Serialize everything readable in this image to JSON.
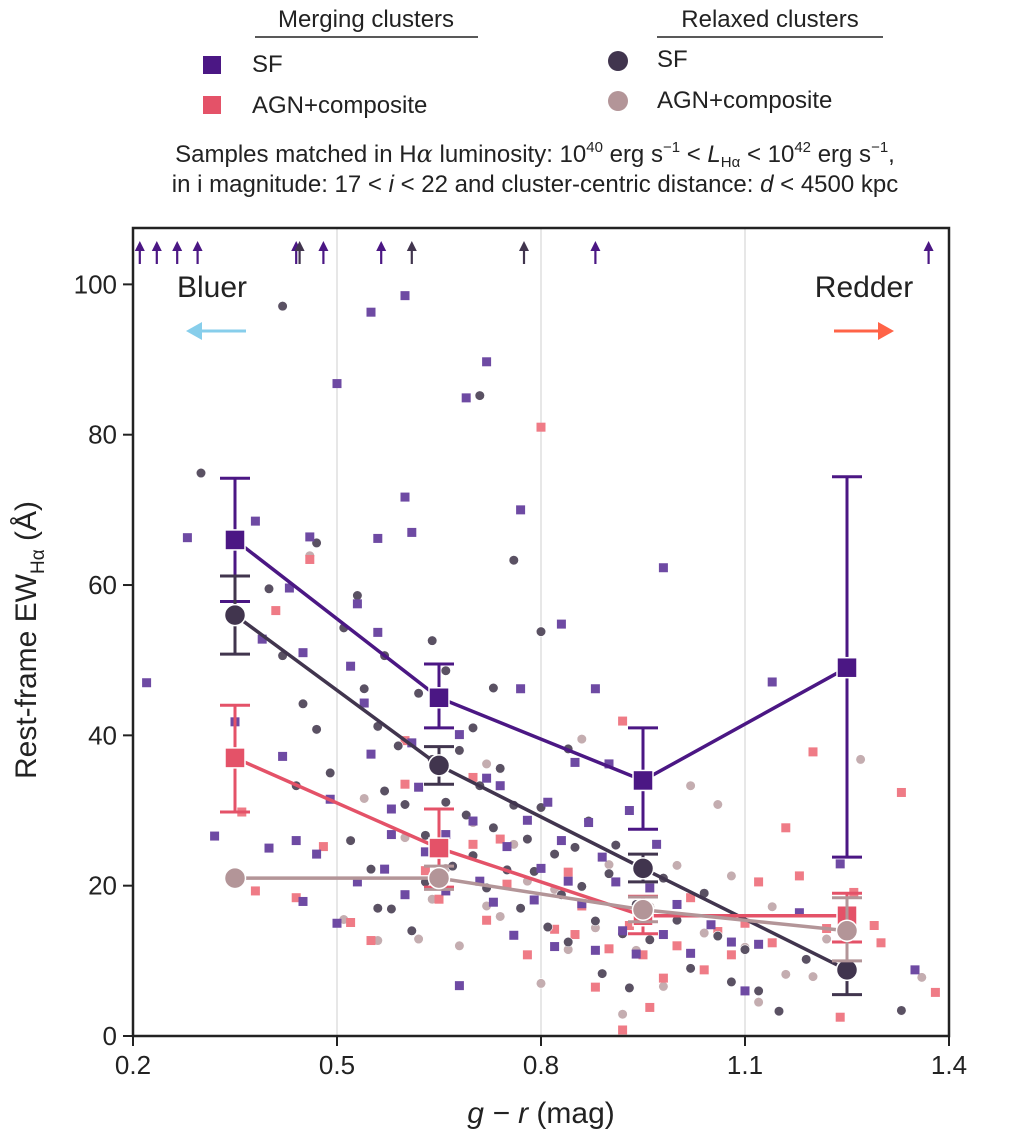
{
  "colors": {
    "merging_sf": "#4b1784",
    "merging_agn": "#e45268",
    "relaxed_sf": "#41354e",
    "relaxed_agn": "#b39598",
    "scatter_merging_sf": "#6e4aa3",
    "scatter_merging_agn": "#ef7b86",
    "scatter_relaxed_sf": "#5a5163",
    "scatter_relaxed_agn": "#c4adb0",
    "bluer": "#87ceeb",
    "redder": "#ff6347",
    "grid": "#cfcfcf",
    "axis": "#222222"
  },
  "legend": {
    "merging_title": "Merging clusters",
    "relaxed_title": "Relaxed clusters",
    "merging_sf": "SF",
    "merging_agn": "AGN+composite",
    "relaxed_sf": "SF",
    "relaxed_agn": "AGN+composite"
  },
  "subtitle": {
    "line1_a": "Samples matched in H",
    "line1_alpha": "α",
    "line1_b": " luminosity: 10",
    "line1_exp1": "40",
    "line1_c": " erg s",
    "line1_exp2": "−1",
    "line1_d": " < ",
    "line1_L": "L",
    "line1_Lsub": "Hα",
    "line1_e": " < 10",
    "line1_exp3": "42",
    "line1_f": " erg s",
    "line1_exp4": "−1",
    "line1_g": ",",
    "line2_a": "in i magnitude: 17 < ",
    "line2_i": "i",
    "line2_b": " < 22 and cluster-centric distance: ",
    "line2_d": "d",
    "line2_c": " < 4500 kpc"
  },
  "annotations": {
    "bluer": "Bluer",
    "redder": "Redder"
  },
  "chart_data": {
    "type": "scatter",
    "xlabel_italic": "g − r",
    "xlabel_unit": " (mag)",
    "ylabel_main": "Rest-frame EW",
    "ylabel_sub": "Hα",
    "ylabel_unit": " (Å)",
    "xlim": [
      0.2,
      1.4
    ],
    "ylim": [
      0,
      105
    ],
    "xticks": [
      0.2,
      0.5,
      0.8,
      1.1,
      1.4
    ],
    "xtick_labels": [
      "0.2",
      "0.5",
      "0.8",
      "1.1",
      "1.4"
    ],
    "yticks": [
      0,
      20,
      40,
      60,
      80,
      100
    ],
    "ytick_labels": [
      "0",
      "20",
      "40",
      "60",
      "80",
      "100"
    ],
    "x_gridlines": [
      0.5,
      0.8,
      1.1
    ],
    "binned_series": [
      {
        "name": "Merging SF",
        "marker": "square",
        "color_key": "merging_sf",
        "x": [
          0.35,
          0.65,
          0.95,
          1.25
        ],
        "y": [
          66,
          45,
          34,
          49
        ],
        "err_low": [
          57.8,
          41,
          27.5,
          23.8
        ],
        "err_high": [
          74.2,
          49.5,
          41,
          74.4
        ]
      },
      {
        "name": "Relaxed SF",
        "marker": "circle",
        "color_key": "relaxed_sf",
        "x": [
          0.35,
          0.65,
          0.95,
          1.25
        ],
        "y": [
          56,
          36,
          22.3,
          8.8
        ],
        "err_low": [
          50.8,
          33.5,
          20.5,
          5.5
        ],
        "err_high": [
          61.2,
          38.5,
          24.2,
          12.5
        ]
      },
      {
        "name": "Merging AGN+composite",
        "marker": "square",
        "color_key": "merging_agn",
        "x": [
          0.35,
          0.65,
          0.95,
          1.25
        ],
        "y": [
          37,
          25,
          16,
          16
        ],
        "err_low": [
          29.8,
          19.8,
          13.6,
          12.5
        ],
        "err_high": [
          44,
          30.2,
          18.6,
          19
        ]
      },
      {
        "name": "Relaxed AGN+composite",
        "marker": "circle",
        "color_key": "relaxed_agn",
        "x": [
          0.35,
          0.65,
          0.95,
          1.25
        ],
        "y": [
          21,
          21,
          16.8,
          14
        ],
        "err_low": [
          21,
          19.5,
          15.2,
          10
        ],
        "err_high": [
          21,
          22.6,
          18.5,
          18.4
        ]
      }
    ],
    "scatter": {
      "merging_sf": [
        [
          0.22,
          47
        ],
        [
          0.28,
          66.3
        ],
        [
          0.38,
          68.5
        ],
        [
          0.45,
          51
        ],
        [
          0.5,
          86.8
        ],
        [
          0.55,
          96.3
        ],
        [
          0.6,
          98.5
        ],
        [
          0.6,
          71.7
        ],
        [
          0.61,
          67
        ],
        [
          0.72,
          89.7
        ],
        [
          0.69,
          84.9
        ],
        [
          0.77,
          70
        ],
        [
          0.83,
          54.8
        ],
        [
          0.88,
          46.2
        ],
        [
          0.9,
          36.2
        ],
        [
          0.98,
          62.3
        ],
        [
          1.14,
          47.1
        ],
        [
          1.35,
          8.8
        ],
        [
          0.32,
          26.6
        ],
        [
          0.35,
          41.8
        ],
        [
          0.4,
          25
        ],
        [
          0.42,
          37.2
        ],
        [
          0.44,
          26
        ],
        [
          0.47,
          24.2
        ],
        [
          0.49,
          31.5
        ],
        [
          0.5,
          15
        ],
        [
          0.52,
          49.2
        ],
        [
          0.53,
          57.5
        ],
        [
          0.54,
          44.3
        ],
        [
          0.55,
          37.5
        ],
        [
          0.57,
          22.2
        ],
        [
          0.58,
          30.2
        ],
        [
          0.6,
          18.8
        ],
        [
          0.61,
          39
        ],
        [
          0.62,
          33.1
        ],
        [
          0.63,
          24.5
        ],
        [
          0.65,
          44.9
        ],
        [
          0.66,
          19.3
        ],
        [
          0.68,
          40.1
        ],
        [
          0.7,
          28.6
        ],
        [
          0.71,
          20.6
        ],
        [
          0.72,
          34.3
        ],
        [
          0.73,
          17.8
        ],
        [
          0.74,
          33.3
        ],
        [
          0.75,
          25.2
        ],
        [
          0.76,
          13.4
        ],
        [
          0.77,
          46.2
        ],
        [
          0.78,
          28.7
        ],
        [
          0.79,
          18.1
        ],
        [
          0.8,
          22.3
        ],
        [
          0.81,
          31.1
        ],
        [
          0.82,
          11.9
        ],
        [
          0.83,
          26
        ],
        [
          0.84,
          20.6
        ],
        [
          0.85,
          36.4
        ],
        [
          0.86,
          17.6
        ],
        [
          0.87,
          28.4
        ],
        [
          0.88,
          11.4
        ],
        [
          0.89,
          23.8
        ],
        [
          0.91,
          20.5
        ],
        [
          0.92,
          14
        ],
        [
          0.93,
          30
        ],
        [
          0.94,
          10.9
        ],
        [
          0.96,
          19.7
        ],
        [
          0.97,
          25.5
        ],
        [
          0.98,
          13.5
        ],
        [
          1.0,
          17.5
        ],
        [
          1.02,
          11
        ],
        [
          1.05,
          14.8
        ],
        [
          1.08,
          12.5
        ],
        [
          1.1,
          6
        ],
        [
          1.12,
          12.2
        ],
        [
          1.18,
          16.4
        ],
        [
          1.24,
          22.9
        ],
        [
          0.45,
          17.9
        ],
        [
          0.53,
          20.5
        ],
        [
          0.56,
          53.7
        ],
        [
          0.39,
          52.8
        ],
        [
          0.66,
          26.8
        ],
        [
          0.68,
          6.7
        ],
        [
          0.56,
          66.2
        ],
        [
          0.58,
          26.8
        ],
        [
          0.43,
          59.6
        ],
        [
          0.46,
          66.4
        ]
      ],
      "merging_agn": [
        [
          0.36,
          29.8
        ],
        [
          0.38,
          19.3
        ],
        [
          0.41,
          56.6
        ],
        [
          0.44,
          18.4
        ],
        [
          0.46,
          63.4
        ],
        [
          0.48,
          25.2
        ],
        [
          0.52,
          15.1
        ],
        [
          0.55,
          12.7
        ],
        [
          0.6,
          39.3
        ],
        [
          0.63,
          22
        ],
        [
          0.65,
          18.2
        ],
        [
          0.7,
          25.5
        ],
        [
          0.72,
          15.4
        ],
        [
          0.75,
          20.2
        ],
        [
          0.78,
          10.8
        ],
        [
          0.8,
          81
        ],
        [
          0.82,
          14.2
        ],
        [
          0.84,
          21.8
        ],
        [
          0.86,
          17.3
        ],
        [
          0.88,
          6.5
        ],
        [
          0.9,
          11.6
        ],
        [
          0.92,
          41.9
        ],
        [
          0.93,
          14.7
        ],
        [
          0.95,
          10.8
        ],
        [
          0.96,
          3.8
        ],
        [
          0.98,
          7.7
        ],
        [
          1.0,
          12
        ],
        [
          1.02,
          18.4
        ],
        [
          1.04,
          8.8
        ],
        [
          1.06,
          13.9
        ],
        [
          1.08,
          10.8
        ],
        [
          1.1,
          15
        ],
        [
          1.12,
          20.5
        ],
        [
          1.14,
          12.4
        ],
        [
          1.16,
          27.7
        ],
        [
          1.18,
          21.3
        ],
        [
          1.2,
          37.8
        ],
        [
          1.22,
          14.3
        ],
        [
          1.24,
          2.5
        ],
        [
          1.26,
          19.1
        ],
        [
          1.3,
          12.4
        ],
        [
          1.33,
          32.4
        ],
        [
          1.38,
          5.8
        ],
        [
          1.29,
          14.7
        ],
        [
          0.92,
          0.8
        ],
        [
          0.7,
          34.4
        ],
        [
          0.6,
          33.5
        ],
        [
          0.74,
          26.2
        ],
        [
          0.85,
          13.5
        ]
      ],
      "merging_agn_extra": [],
      "relaxed_sf": [
        [
          0.3,
          74.9
        ],
        [
          0.42,
          97.1
        ],
        [
          0.71,
          85.2
        ],
        [
          0.76,
          63.3
        ],
        [
          0.84,
          38.2
        ],
        [
          0.8,
          53.8
        ],
        [
          0.45,
          44.2
        ],
        [
          0.4,
          59.5
        ],
        [
          0.47,
          65.6
        ],
        [
          0.51,
          54.3
        ],
        [
          0.53,
          58.6
        ],
        [
          0.54,
          46.2
        ],
        [
          0.56,
          41.2
        ],
        [
          0.57,
          32.6
        ],
        [
          0.59,
          38.6
        ],
        [
          0.6,
          30.8
        ],
        [
          0.62,
          45.6
        ],
        [
          0.63,
          26.7
        ],
        [
          0.64,
          36.8
        ],
        [
          0.66,
          31.1
        ],
        [
          0.67,
          22.6
        ],
        [
          0.68,
          38
        ],
        [
          0.69,
          29.4
        ],
        [
          0.7,
          24
        ],
        [
          0.71,
          33.3
        ],
        [
          0.72,
          19.7
        ],
        [
          0.73,
          27.7
        ],
        [
          0.74,
          35.6
        ],
        [
          0.75,
          22.1
        ],
        [
          0.76,
          30.7
        ],
        [
          0.77,
          17
        ],
        [
          0.78,
          26.2
        ],
        [
          0.79,
          21.9
        ],
        [
          0.8,
          30.4
        ],
        [
          0.81,
          14.5
        ],
        [
          0.82,
          24.2
        ],
        [
          0.83,
          18.8
        ],
        [
          0.84,
          12.5
        ],
        [
          0.85,
          25.1
        ],
        [
          0.86,
          19.9
        ],
        [
          0.87,
          28.6
        ],
        [
          0.88,
          15.3
        ],
        [
          0.89,
          8.3
        ],
        [
          0.9,
          21.6
        ],
        [
          0.91,
          25.4
        ],
        [
          0.92,
          13.6
        ],
        [
          0.93,
          6.4
        ],
        [
          0.94,
          17.5
        ],
        [
          0.96,
          12.8
        ],
        [
          0.98,
          21
        ],
        [
          1.0,
          15.4
        ],
        [
          1.02,
          9
        ],
        [
          1.04,
          19
        ],
        [
          1.06,
          13.3
        ],
        [
          1.08,
          7.2
        ],
        [
          1.1,
          11.5
        ],
        [
          1.12,
          6
        ],
        [
          1.15,
          3.3
        ],
        [
          1.19,
          10.2
        ],
        [
          1.33,
          3.4
        ],
        [
          0.47,
          40.8
        ],
        [
          0.49,
          35
        ],
        [
          0.52,
          26
        ],
        [
          0.55,
          22.2
        ],
        [
          0.58,
          16.9
        ],
        [
          0.61,
          14
        ],
        [
          0.64,
          52.6
        ],
        [
          0.66,
          48.6
        ],
        [
          0.7,
          41
        ],
        [
          0.73,
          46.3
        ],
        [
          0.56,
          17
        ],
        [
          0.44,
          33.3
        ],
        [
          0.42,
          50.6
        ],
        [
          0.57,
          50.6
        ],
        [
          0.63,
          20.5
        ]
      ],
      "relaxed_agn": [
        [
          0.46,
          63.9
        ],
        [
          0.51,
          15.5
        ],
        [
          0.56,
          12.7
        ],
        [
          0.6,
          26.4
        ],
        [
          0.62,
          12.9
        ],
        [
          0.64,
          18.2
        ],
        [
          0.66,
          22.3
        ],
        [
          0.68,
          12
        ],
        [
          0.7,
          28.4
        ],
        [
          0.72,
          17.3
        ],
        [
          0.74,
          15.9
        ],
        [
          0.76,
          25.5
        ],
        [
          0.78,
          20.6
        ],
        [
          0.8,
          7
        ],
        [
          0.82,
          19.5
        ],
        [
          0.84,
          11.5
        ],
        [
          0.86,
          39.5
        ],
        [
          0.88,
          14.4
        ],
        [
          0.9,
          22.8
        ],
        [
          0.92,
          2.9
        ],
        [
          0.94,
          11.4
        ],
        [
          0.96,
          17.2
        ],
        [
          0.98,
          6.6
        ],
        [
          1.0,
          22.7
        ],
        [
          1.02,
          33.3
        ],
        [
          1.04,
          13.7
        ],
        [
          1.06,
          30.8
        ],
        [
          1.08,
          21.3
        ],
        [
          1.1,
          11.8
        ],
        [
          1.12,
          4.5
        ],
        [
          1.14,
          17.2
        ],
        [
          1.16,
          8.2
        ],
        [
          1.2,
          7.9
        ],
        [
          1.22,
          12.9
        ],
        [
          1.25,
          15.5
        ],
        [
          1.27,
          36.8
        ],
        [
          1.36,
          7.8
        ],
        [
          0.72,
          36.2
        ],
        [
          0.54,
          31.6
        ]
      ]
    },
    "upper_limit_arrows": [
      {
        "x": 0.21,
        "group": "merging_sf"
      },
      {
        "x": 0.235,
        "group": "merging_sf"
      },
      {
        "x": 0.265,
        "group": "merging_sf"
      },
      {
        "x": 0.295,
        "group": "merging_sf"
      },
      {
        "x": 0.44,
        "group": "merging_sf"
      },
      {
        "x": 0.445,
        "group": "relaxed_sf"
      },
      {
        "x": 0.48,
        "group": "merging_sf"
      },
      {
        "x": 0.565,
        "group": "merging_sf"
      },
      {
        "x": 0.61,
        "group": "relaxed_sf"
      },
      {
        "x": 0.775,
        "group": "relaxed_sf"
      },
      {
        "x": 0.88,
        "group": "merging_sf"
      },
      {
        "x": 1.37,
        "group": "merging_sf"
      }
    ]
  }
}
